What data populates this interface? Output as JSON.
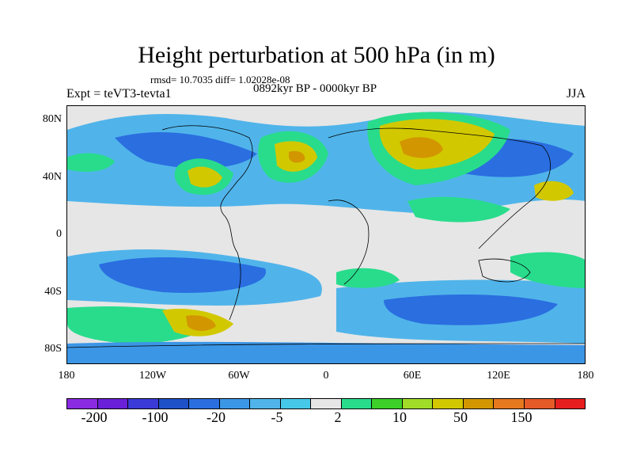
{
  "title": "Height perturbation at 500 hPa (in m)",
  "stats": "rmsd= 10.7035 diff= 1.02028e-08",
  "period": "0892kyr BP - 0000kyr BP",
  "experiment": "Expt = teVT3-tevta1",
  "season": "JJA",
  "lat_labels": [
    "80N",
    "40N",
    "0",
    "40S",
    "80S"
  ],
  "lon_labels": [
    "180",
    "120W",
    "60W",
    "0",
    "60E",
    "120E",
    "180"
  ],
  "colorbar": {
    "colors": [
      "#8a2be2",
      "#6a20d8",
      "#3a3ad8",
      "#1e50c8",
      "#2a6ee0",
      "#3c96e6",
      "#50b4ea",
      "#46c8e8",
      "#e6e6e6",
      "#28dc8c",
      "#3cd028",
      "#a0dc28",
      "#d2c800",
      "#d29600",
      "#e6781e",
      "#e65a28",
      "#e61e1e"
    ],
    "labels": [
      "-200",
      "-100",
      "-20",
      "-5",
      "2",
      "10",
      "50",
      "150"
    ]
  },
  "colors": {
    "background": "#e6e6e6",
    "ocean_light_blue": "#50b4ea",
    "deep_blue": "#2a6ee0",
    "green": "#28dc8c",
    "yellow": "#d2c800",
    "orange": "#d29600"
  }
}
